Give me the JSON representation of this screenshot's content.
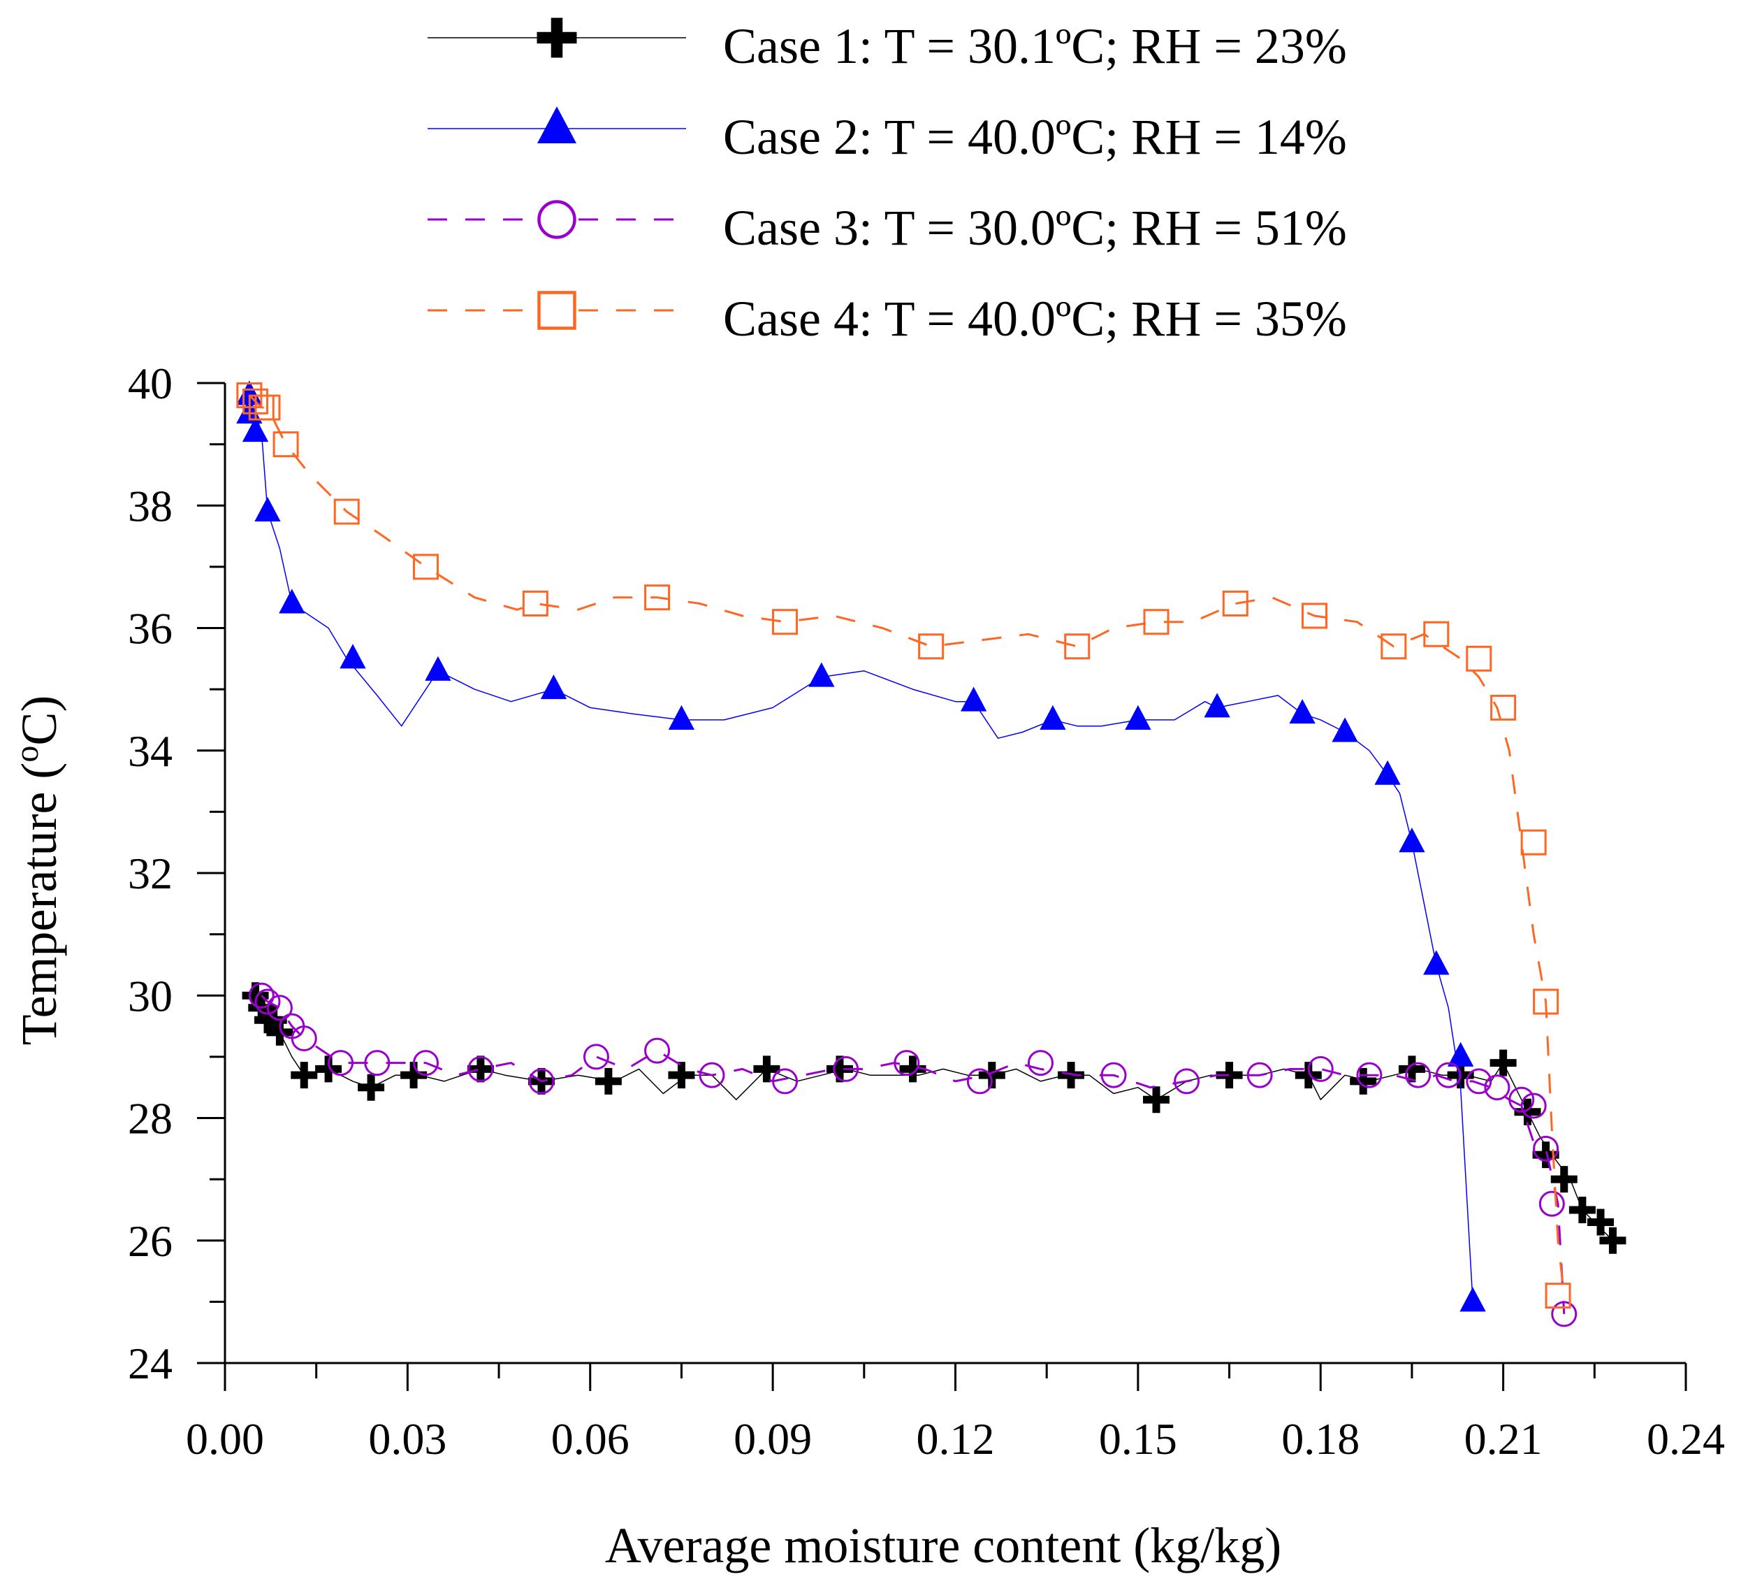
{
  "colors": {
    "case1": "#000000",
    "case2": "#0000ff",
    "case3": "#9900cc",
    "case4": "#ff6622",
    "axis": "#000000",
    "background": "#ffffff"
  },
  "chart_data": {
    "type": "line",
    "title": "",
    "xlabel": "Average moisture content (kg/kg)",
    "ylabel": "Temperature (°C)",
    "ylabel_parts": {
      "main": "Temperature (",
      "superscript": "o",
      "unit": "C)"
    },
    "xlim": [
      0.0,
      0.24
    ],
    "ylim": [
      24,
      40
    ],
    "xticks": [
      0.0,
      0.03,
      0.06,
      0.09,
      0.12,
      0.15,
      0.18,
      0.21,
      0.24
    ],
    "xtick_labels": [
      "0.00",
      "0.03",
      "0.06",
      "0.09",
      "0.12",
      "0.15",
      "0.18",
      "0.21",
      "0.24"
    ],
    "xminor_step": 0.015,
    "yticks": [
      24,
      26,
      28,
      30,
      32,
      34,
      36,
      38,
      40
    ],
    "ytick_labels": [
      "24",
      "26",
      "28",
      "30",
      "32",
      "34",
      "36",
      "38",
      "40"
    ],
    "yminor_step": 1,
    "grid": false,
    "legend_position": "top",
    "series": [
      {
        "name": "Case 1: T = 30.1ºC; RH = 23%",
        "legend_label": "Case 1: T = 30.1ºC; RH = 23%",
        "color_key": "case1",
        "marker": "plus",
        "linestyle": "solid",
        "line_x": [
          0.005,
          0.006,
          0.007,
          0.008,
          0.009,
          0.011,
          0.013,
          0.017,
          0.021,
          0.024,
          0.028,
          0.032,
          0.036,
          0.042,
          0.046,
          0.052,
          0.058,
          0.064,
          0.068,
          0.072,
          0.076,
          0.08,
          0.084,
          0.089,
          0.094,
          0.098,
          0.102,
          0.106,
          0.11,
          0.114,
          0.118,
          0.122,
          0.126,
          0.13,
          0.134,
          0.138,
          0.142,
          0.146,
          0.15,
          0.153,
          0.158,
          0.162,
          0.166,
          0.17,
          0.174,
          0.178,
          0.18,
          0.184,
          0.188,
          0.192,
          0.196,
          0.2,
          0.204,
          0.208,
          0.21,
          0.214,
          0.216,
          0.218,
          0.221,
          0.223,
          0.225,
          0.228
        ],
        "line_y": [
          30.0,
          29.9,
          29.7,
          29.6,
          29.4,
          29.0,
          28.7,
          28.8,
          28.6,
          28.5,
          28.7,
          28.7,
          28.6,
          28.8,
          28.7,
          28.6,
          28.7,
          28.6,
          28.8,
          28.4,
          28.7,
          28.7,
          28.3,
          28.8,
          28.6,
          28.7,
          28.8,
          28.7,
          28.7,
          28.7,
          28.8,
          28.7,
          28.7,
          28.8,
          28.6,
          28.7,
          28.7,
          28.4,
          28.5,
          28.3,
          28.6,
          28.7,
          28.7,
          28.7,
          28.8,
          28.7,
          28.3,
          28.7,
          28.6,
          28.7,
          28.8,
          28.7,
          28.7,
          28.6,
          28.9,
          28.1,
          27.7,
          27.4,
          27.0,
          26.5,
          26.3,
          26.0
        ],
        "marker_x": [
          0.005,
          0.006,
          0.007,
          0.008,
          0.009,
          0.013,
          0.017,
          0.024,
          0.031,
          0.042,
          0.052,
          0.063,
          0.075,
          0.089,
          0.101,
          0.113,
          0.126,
          0.139,
          0.153,
          0.165,
          0.178,
          0.187,
          0.195,
          0.203,
          0.21,
          0.214,
          0.217,
          0.22,
          0.223,
          0.226,
          0.228
        ],
        "marker_y": [
          30.0,
          29.8,
          29.6,
          29.6,
          29.4,
          28.7,
          28.8,
          28.5,
          28.7,
          28.8,
          28.6,
          28.6,
          28.7,
          28.8,
          28.8,
          28.8,
          28.7,
          28.7,
          28.3,
          28.7,
          28.7,
          28.6,
          28.8,
          28.7,
          28.9,
          28.1,
          27.4,
          27.0,
          26.5,
          26.3,
          26.0
        ]
      },
      {
        "name": "Case 2: T = 40.0ºC; RH = 14%",
        "legend_label": "Case 2: T = 40.0ºC; RH = 14%",
        "color_key": "case2",
        "marker": "triangle",
        "linestyle": "solid",
        "line_x": [
          0.004,
          0.005,
          0.006,
          0.007,
          0.009,
          0.011,
          0.014,
          0.017,
          0.02,
          0.025,
          0.029,
          0.035,
          0.041,
          0.047,
          0.054,
          0.06,
          0.067,
          0.075,
          0.082,
          0.09,
          0.098,
          0.105,
          0.113,
          0.12,
          0.123,
          0.127,
          0.131,
          0.136,
          0.14,
          0.144,
          0.15,
          0.156,
          0.161,
          0.163,
          0.168,
          0.173,
          0.177,
          0.18,
          0.184,
          0.188,
          0.191,
          0.193,
          0.195,
          0.197,
          0.199,
          0.201,
          0.203,
          0.205
        ],
        "line_y": [
          39.8,
          39.5,
          39.2,
          37.9,
          37.3,
          36.4,
          36.2,
          36.0,
          35.5,
          34.9,
          34.4,
          35.3,
          35.0,
          34.8,
          35.0,
          34.7,
          34.6,
          34.5,
          34.5,
          34.7,
          35.2,
          35.3,
          35.0,
          34.8,
          34.8,
          34.2,
          34.3,
          34.5,
          34.4,
          34.4,
          34.5,
          34.5,
          34.8,
          34.7,
          34.8,
          34.9,
          34.6,
          34.5,
          34.3,
          34.0,
          33.6,
          33.3,
          32.5,
          31.5,
          30.5,
          29.8,
          28.5,
          25.0
        ],
        "marker_x": [
          0.004,
          0.004,
          0.005,
          0.007,
          0.011,
          0.021,
          0.035,
          0.054,
          0.075,
          0.098,
          0.123,
          0.136,
          0.15,
          0.163,
          0.177,
          0.184,
          0.191,
          0.195,
          0.199,
          0.203,
          0.205
        ],
        "marker_y": [
          39.8,
          39.5,
          39.2,
          37.9,
          36.4,
          35.5,
          35.3,
          35.0,
          34.5,
          35.2,
          34.8,
          34.5,
          34.5,
          34.7,
          34.6,
          34.3,
          33.6,
          32.5,
          30.5,
          29.0,
          25.0
        ]
      },
      {
        "name": "Case 3: T = 30.0ºC; RH = 51%",
        "legend_label": "Case 3: T = 30.0ºC; RH = 51%",
        "color_key": "case3",
        "marker": "circle",
        "linestyle": "dashed",
        "line_x": [
          0.006,
          0.007,
          0.009,
          0.011,
          0.013,
          0.016,
          0.019,
          0.025,
          0.033,
          0.038,
          0.042,
          0.047,
          0.052,
          0.057,
          0.061,
          0.066,
          0.071,
          0.076,
          0.08,
          0.085,
          0.09,
          0.095,
          0.1,
          0.105,
          0.11,
          0.115,
          0.12,
          0.125,
          0.13,
          0.134,
          0.14,
          0.146,
          0.152,
          0.158,
          0.163,
          0.17,
          0.175,
          0.18,
          0.184,
          0.188,
          0.192,
          0.196,
          0.199,
          0.202,
          0.205,
          0.208,
          0.211,
          0.213,
          0.215,
          0.217,
          0.219,
          0.22
        ],
        "line_y": [
          30.0,
          29.9,
          29.8,
          29.5,
          29.3,
          29.1,
          28.9,
          28.9,
          28.9,
          28.7,
          28.8,
          28.9,
          28.6,
          28.7,
          29.0,
          28.8,
          29.1,
          28.8,
          28.7,
          28.8,
          28.6,
          28.7,
          28.8,
          28.8,
          28.9,
          28.8,
          28.6,
          28.7,
          28.9,
          28.8,
          28.7,
          28.7,
          28.5,
          28.6,
          28.7,
          28.7,
          28.8,
          28.8,
          28.7,
          28.7,
          28.7,
          28.6,
          28.7,
          28.6,
          28.6,
          28.5,
          28.3,
          28.2,
          27.6,
          27.5,
          26.6,
          24.8
        ],
        "marker_x": [
          0.006,
          0.007,
          0.009,
          0.011,
          0.013,
          0.019,
          0.025,
          0.033,
          0.042,
          0.052,
          0.061,
          0.071,
          0.08,
          0.092,
          0.102,
          0.112,
          0.124,
          0.134,
          0.146,
          0.158,
          0.17,
          0.18,
          0.188,
          0.196,
          0.201,
          0.206,
          0.209,
          0.213,
          0.215,
          0.217,
          0.218,
          0.22
        ],
        "marker_y": [
          30.0,
          29.9,
          29.8,
          29.5,
          29.3,
          28.9,
          28.9,
          28.9,
          28.8,
          28.6,
          29.0,
          29.1,
          28.7,
          28.6,
          28.8,
          28.9,
          28.6,
          28.9,
          28.7,
          28.6,
          28.7,
          28.8,
          28.7,
          28.7,
          28.7,
          28.6,
          28.5,
          28.3,
          28.2,
          27.5,
          26.6,
          24.8
        ]
      },
      {
        "name": "Case 4: T = 40.0ºC; RH = 35%",
        "legend_label": "Case 4: T = 40.0ºC; RH = 35%",
        "color_key": "case4",
        "marker": "square",
        "linestyle": "dashed",
        "line_x": [
          0.004,
          0.005,
          0.006,
          0.007,
          0.01,
          0.014,
          0.02,
          0.026,
          0.033,
          0.041,
          0.048,
          0.051,
          0.058,
          0.064,
          0.071,
          0.078,
          0.085,
          0.092,
          0.1,
          0.108,
          0.116,
          0.124,
          0.132,
          0.14,
          0.146,
          0.153,
          0.159,
          0.166,
          0.172,
          0.179,
          0.186,
          0.192,
          0.197,
          0.203,
          0.206,
          0.209,
          0.211,
          0.213,
          0.215,
          0.217,
          0.218,
          0.219,
          0.22
        ],
        "line_y": [
          39.8,
          39.7,
          39.6,
          39.6,
          39.0,
          38.5,
          37.9,
          37.5,
          37.0,
          36.5,
          36.3,
          36.4,
          36.3,
          36.5,
          36.5,
          36.4,
          36.2,
          36.1,
          36.2,
          36.0,
          35.7,
          35.8,
          35.9,
          35.7,
          36.0,
          36.1,
          36.1,
          36.4,
          36.5,
          36.2,
          36.1,
          35.7,
          35.9,
          35.5,
          35.2,
          34.7,
          34.0,
          32.5,
          31.0,
          29.9,
          27.8,
          26.0,
          25.1
        ],
        "marker_x": [
          0.004,
          0.005,
          0.006,
          0.007,
          0.01,
          0.02,
          0.033,
          0.051,
          0.071,
          0.092,
          0.116,
          0.14,
          0.153,
          0.166,
          0.179,
          0.192,
          0.199,
          0.206,
          0.21,
          0.215,
          0.217,
          0.219
        ],
        "marker_y": [
          39.8,
          39.7,
          39.6,
          39.6,
          39.0,
          37.9,
          37.0,
          36.4,
          36.5,
          36.1,
          35.7,
          35.7,
          36.1,
          36.4,
          36.2,
          35.7,
          35.9,
          35.5,
          34.7,
          32.5,
          29.9,
          25.1
        ]
      }
    ]
  }
}
